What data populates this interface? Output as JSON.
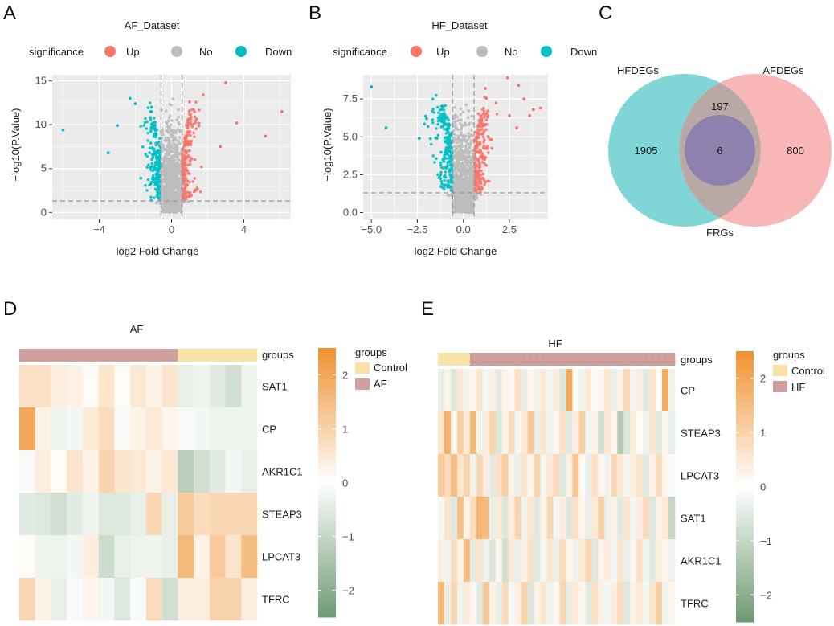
{
  "panel_labels": [
    "A",
    "B",
    "C",
    "D",
    "E"
  ],
  "colors": {
    "up": "#F8766D",
    "no": "#BDBDBD",
    "down": "#00BFC4",
    "panel_bg": "#EBEBEB",
    "control": "#F9E2A6",
    "case": "#CFA09B",
    "heat_low": "#6E9A72",
    "heat_mid": "#FFFFFF",
    "heat_high": "#F0912F",
    "venn_hf": "#6ACFCF",
    "venn_af": "#F8A9A9",
    "venn_frg": "#8E81AE"
  },
  "chart_data": [
    {
      "id": "A",
      "type": "scatter",
      "title": "AF_Dataset",
      "xlabel": "log2 Fold Change",
      "ylabel": "−log10(P.Value)",
      "xlim": [
        -6.6,
        6.6
      ],
      "ylim": [
        -0.8,
        15.7
      ],
      "xticks": [
        -4,
        0,
        4
      ],
      "xtick_labels": [
        "−4",
        "0",
        "4"
      ],
      "yticks": [
        0,
        5,
        10,
        15
      ],
      "ytick_labels": [
        "0",
        "5",
        "10",
        "15"
      ],
      "vlines": [
        -0.585,
        0.585
      ],
      "hline": 1.3,
      "legend_title": "significance",
      "legend": [
        "Up",
        "No",
        "Down"
      ],
      "highlight_points": [
        [
          -6.0,
          9.4
        ],
        [
          -3.0,
          9.9
        ],
        [
          -2.3,
          13.0
        ],
        [
          -2.0,
          12.4
        ],
        [
          -3.5,
          6.8
        ],
        [
          3.0,
          14.8
        ],
        [
          6.1,
          11.5
        ],
        [
          5.2,
          8.7
        ],
        [
          3.6,
          10.2
        ],
        [
          2.7,
          7.5
        ],
        [
          1.0,
          12.6
        ],
        [
          -1.1,
          12.0
        ],
        [
          -1.7,
          3.9
        ]
      ]
    },
    {
      "id": "B",
      "type": "scatter",
      "title": "HF_Dataset",
      "xlabel": "log2 Fold Change",
      "ylabel": "−log10(P.Value)",
      "xlim": [
        -5.45,
        4.6
      ],
      "ylim": [
        -0.45,
        9.1
      ],
      "xticks": [
        -5.0,
        -2.5,
        0.0,
        2.5
      ],
      "xtick_labels": [
        "−5.0",
        "−2.5",
        "0.0",
        "2.5"
      ],
      "yticks": [
        0,
        2.5,
        5,
        7.5
      ],
      "ytick_labels": [
        "0.0",
        "2.5",
        "5.0",
        "7.5"
      ],
      "vlines": [
        -0.585,
        0.585
      ],
      "hline": 1.3,
      "legend_title": "significance",
      "legend": [
        "Up",
        "No",
        "Down"
      ],
      "highlight_points": [
        [
          -5.0,
          8.3
        ],
        [
          -4.2,
          5.6
        ],
        [
          2.4,
          8.9
        ],
        [
          3.0,
          8.4
        ],
        [
          3.3,
          7.5
        ],
        [
          3.8,
          6.8
        ],
        [
          4.2,
          6.9
        ],
        [
          3.6,
          6.4
        ],
        [
          2.9,
          5.6
        ],
        [
          2.5,
          6.4
        ],
        [
          -2.0,
          6.2
        ],
        [
          -1.1,
          6.4
        ],
        [
          -2.4,
          4.9
        ],
        [
          1.2,
          8.2
        ]
      ]
    },
    {
      "id": "C",
      "type": "venn",
      "sets": [
        "HFDEGs",
        "AFDEGs",
        "FRGs"
      ],
      "regions": {
        "HF_only": "1905",
        "AF_only": "800",
        "HF_AF_only": "197",
        "HF_AF_FRG": "6"
      }
    },
    {
      "id": "D",
      "type": "heatmap",
      "title": "AF",
      "rows": [
        "SAT1",
        "CP",
        "AKR1C1",
        "STEAP3",
        "LPCAT3",
        "TFRC"
      ],
      "groups_label": "groups",
      "legend_title": "groups",
      "group_names": [
        "Control",
        "AF"
      ],
      "column_groups": [
        "AF",
        "AF",
        "AF",
        "AF",
        "AF",
        "AF",
        "AF",
        "AF",
        "AF",
        "AF",
        "Control",
        "Control",
        "Control",
        "Control",
        "Control"
      ],
      "colorbar_ticks": [
        2,
        1,
        0,
        -1,
        -2
      ],
      "colorbar_tick_labels": [
        "2",
        "1",
        "0",
        "−1",
        "−2"
      ],
      "vmin": -2.5,
      "vmax": 2.5,
      "values": [
        [
          0.7,
          0.7,
          0.4,
          0.3,
          0.1,
          0.6,
          0.1,
          0.5,
          0.3,
          0.6,
          -0.4,
          -0.3,
          -0.5,
          -0.8,
          -0.3
        ],
        [
          2.0,
          0.3,
          -0.3,
          -0.2,
          0.5,
          0.8,
          -0.1,
          0.3,
          0.5,
          0.2,
          -0.1,
          -0.2,
          -0.3,
          -0.3,
          -0.3
        ],
        [
          -0.1,
          0.4,
          0.1,
          0.6,
          0.3,
          1.0,
          0.6,
          0.5,
          0.3,
          0.5,
          -1.2,
          -0.8,
          -0.5,
          -0.2,
          -0.4
        ],
        [
          -0.5,
          -0.6,
          -0.8,
          -0.5,
          -0.3,
          -0.6,
          -0.6,
          -0.4,
          0.9,
          -0.4,
          1.2,
          0.8,
          0.9,
          0.9,
          0.9
        ],
        [
          0.1,
          -0.3,
          -0.3,
          -0.2,
          0.4,
          -0.9,
          -0.4,
          -0.3,
          -0.3,
          -0.4,
          1.6,
          0.3,
          1.2,
          0.6,
          1.5
        ],
        [
          0.9,
          0.3,
          -0.4,
          -0.1,
          0.2,
          -0.2,
          -0.6,
          -0.1,
          0.8,
          -0.8,
          0.4,
          0.4,
          1.0,
          1.0,
          0.4
        ]
      ]
    },
    {
      "id": "E",
      "type": "heatmap",
      "title": "HF",
      "rows": [
        "CP",
        "STEAP3",
        "LPCAT3",
        "SAT1",
        "AKR1C1",
        "TFRC"
      ],
      "groups_label": "groups",
      "legend_title": "groups",
      "group_names": [
        "Control",
        "HF"
      ],
      "column_groups": [
        "Control",
        "Control",
        "Control",
        "Control",
        "Control",
        "HF",
        "HF",
        "HF",
        "HF",
        "HF",
        "HF",
        "HF",
        "HF",
        "HF",
        "HF",
        "HF",
        "HF",
        "HF",
        "HF",
        "HF",
        "HF",
        "HF",
        "HF",
        "HF",
        "HF",
        "HF",
        "HF",
        "HF",
        "HF",
        "HF",
        "HF",
        "HF",
        "HF",
        "HF",
        "HF",
        "HF",
        "HF"
      ],
      "colorbar_ticks": [
        2,
        1,
        0,
        -1,
        -2
      ],
      "colorbar_tick_labels": [
        "2",
        "1",
        "0",
        "−1",
        "−2"
      ],
      "vmin": -2.5,
      "vmax": 2.5,
      "values": [
        [
          -0.4,
          0.3,
          -0.6,
          0.5,
          -0.3,
          0.2,
          0.6,
          -0.2,
          0.4,
          -0.5,
          0.3,
          0.1,
          0.7,
          -0.4,
          0.2,
          -0.3,
          0.5,
          -0.2,
          0.4,
          -0.6,
          2.0,
          0.1,
          -0.3,
          0.5,
          -0.1,
          0.2,
          0.6,
          -0.4,
          0.3,
          0.9,
          -0.2,
          0.4,
          -0.5,
          0.6,
          0.1,
          1.9,
          -0.3
        ],
        [
          0.6,
          1.8,
          0.2,
          1.1,
          0.5,
          1.6,
          -0.3,
          0.4,
          1.0,
          -0.6,
          0.3,
          0.8,
          -0.2,
          0.5,
          1.2,
          -0.4,
          0.6,
          -0.3,
          0.2,
          0.7,
          -0.5,
          0.4,
          1.1,
          -0.2,
          0.3,
          -0.8,
          0.5,
          0.2,
          -1.3,
          -0.6,
          0.4,
          0.1,
          -0.3,
          0.6,
          -0.5,
          0.2,
          -0.4
        ],
        [
          1.2,
          0.8,
          1.5,
          0.6,
          1.0,
          -0.3,
          0.9,
          0.4,
          -0.5,
          0.7,
          1.1,
          0.3,
          -0.4,
          0.6,
          0.2,
          1.0,
          -0.2,
          0.5,
          0.8,
          -0.6,
          0.3,
          1.3,
          0.1,
          -0.4,
          0.7,
          0.2,
          -0.3,
          0.9,
          0.5,
          -0.2,
          0.4,
          0.6,
          -0.5,
          0.3,
          0.8,
          0.2,
          -0.1
        ],
        [
          -0.2,
          0.6,
          -0.5,
          1.4,
          0.3,
          0.8,
          1.7,
          1.5,
          -0.4,
          0.5,
          -0.6,
          0.4,
          1.0,
          -0.3,
          0.6,
          -0.5,
          0.3,
          0.9,
          -0.2,
          0.4,
          -0.6,
          0.7,
          0.2,
          -0.4,
          0.5,
          1.1,
          -0.3,
          0.3,
          -0.5,
          0.6,
          -0.2,
          0.4,
          0.8,
          -0.6,
          0.3,
          0.5,
          -1.0
        ],
        [
          0.4,
          -0.3,
          0.8,
          0.3,
          1.5,
          -0.5,
          0.6,
          -0.3,
          -0.6,
          0.2,
          -0.8,
          0.5,
          -0.4,
          0.3,
          0.7,
          -0.5,
          -0.2,
          0.6,
          -0.4,
          0.8,
          0.2,
          -0.3,
          0.5,
          0.9,
          -0.6,
          0.3,
          0.4,
          -0.2,
          0.6,
          -0.4,
          0.2,
          0.7,
          -0.3,
          -0.5,
          0.4,
          0.2,
          -0.3
        ],
        [
          1.6,
          -0.4,
          0.9,
          -0.3,
          0.5,
          0.2,
          -0.5,
          1.2,
          0.3,
          -0.4,
          0.8,
          -0.2,
          0.4,
          1.0,
          -0.6,
          0.3,
          0.6,
          -0.3,
          0.2,
          0.9,
          -0.4,
          0.5,
          0.2,
          -0.5,
          0.7,
          0.3,
          -0.2,
          0.4,
          0.8,
          -0.6,
          0.3,
          0.5,
          -0.2,
          0.6,
          1.1,
          -0.3,
          0.2
        ]
      ]
    }
  ]
}
